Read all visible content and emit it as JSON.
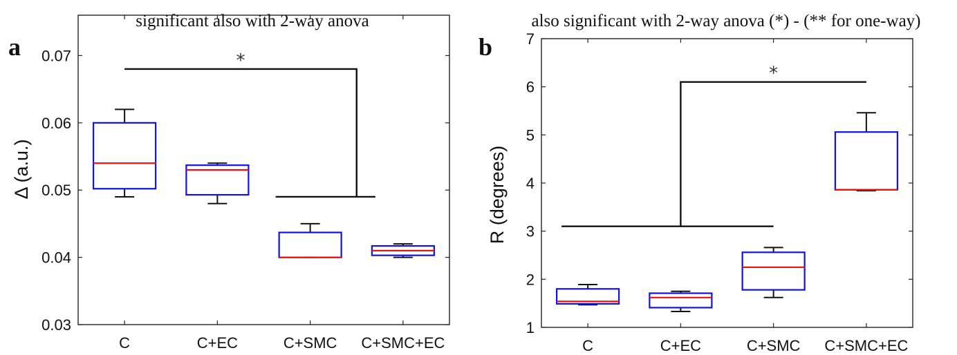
{
  "chart_data": [
    {
      "type": "box",
      "panel_label": "a",
      "annotation": "significant also with 2-way anova",
      "ylabel": "Δ (a.u.)",
      "ylim": [
        0.03,
        0.076
      ],
      "yticks": [
        0.03,
        0.04,
        0.05,
        0.06,
        0.07
      ],
      "ytick_labels": [
        "0.03",
        "0.04",
        "0.05",
        "0.06",
        "0.07"
      ],
      "categories": [
        "C",
        "C+EC",
        "C+SMC",
        "C+SMC+EC"
      ],
      "boxes": [
        {
          "min": 0.049,
          "q1": 0.0502,
          "median": 0.054,
          "q3": 0.06,
          "max": 0.062
        },
        {
          "min": 0.048,
          "q1": 0.0493,
          "median": 0.053,
          "q3": 0.0537,
          "max": 0.054
        },
        {
          "min": 0.04,
          "q1": 0.04,
          "median": 0.04,
          "q3": 0.0437,
          "max": 0.045
        },
        {
          "min": 0.04,
          "q1": 0.0403,
          "median": 0.041,
          "q3": 0.0417,
          "max": 0.042
        }
      ],
      "significance": {
        "marker": "*",
        "bar_y": 0.068,
        "left_category": 0,
        "right_bar_y": 0.049,
        "right_bar_span": [
          2,
          3
        ]
      }
    },
    {
      "type": "box",
      "panel_label": "b",
      "annotation": "also significant with 2-way anova (*) - (** for one-way)",
      "ylabel": "R (degrees)",
      "ylim": [
        1,
        7
      ],
      "yticks": [
        1,
        2,
        3,
        4,
        5,
        6,
        7
      ],
      "ytick_labels": [
        "1",
        "2",
        "3",
        "4",
        "5",
        "6",
        "7"
      ],
      "categories": [
        "C",
        "C+EC",
        "C+SMC",
        "C+SMC+EC"
      ],
      "boxes": [
        {
          "min": 1.47,
          "q1": 1.49,
          "median": 1.54,
          "q3": 1.8,
          "max": 1.89
        },
        {
          "min": 1.33,
          "q1": 1.41,
          "median": 1.62,
          "q3": 1.71,
          "max": 1.75
        },
        {
          "min": 1.62,
          "q1": 1.78,
          "median": 2.25,
          "q3": 2.56,
          "max": 2.66
        },
        {
          "min": 3.84,
          "q1": 3.86,
          "median": 3.86,
          "q3": 5.06,
          "max": 5.46
        }
      ],
      "significance": {
        "marker": "*",
        "bar_y": 6.1,
        "right_category": 3,
        "left_bar_y": 3.1,
        "left_bar_span": [
          0,
          2
        ]
      }
    }
  ]
}
